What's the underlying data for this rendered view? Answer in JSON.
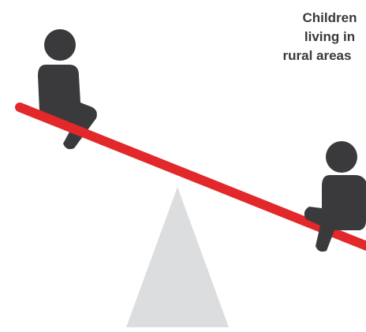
{
  "caption": {
    "lines": [
      "Children",
      "living in",
      "rural areas"
    ]
  }
}
